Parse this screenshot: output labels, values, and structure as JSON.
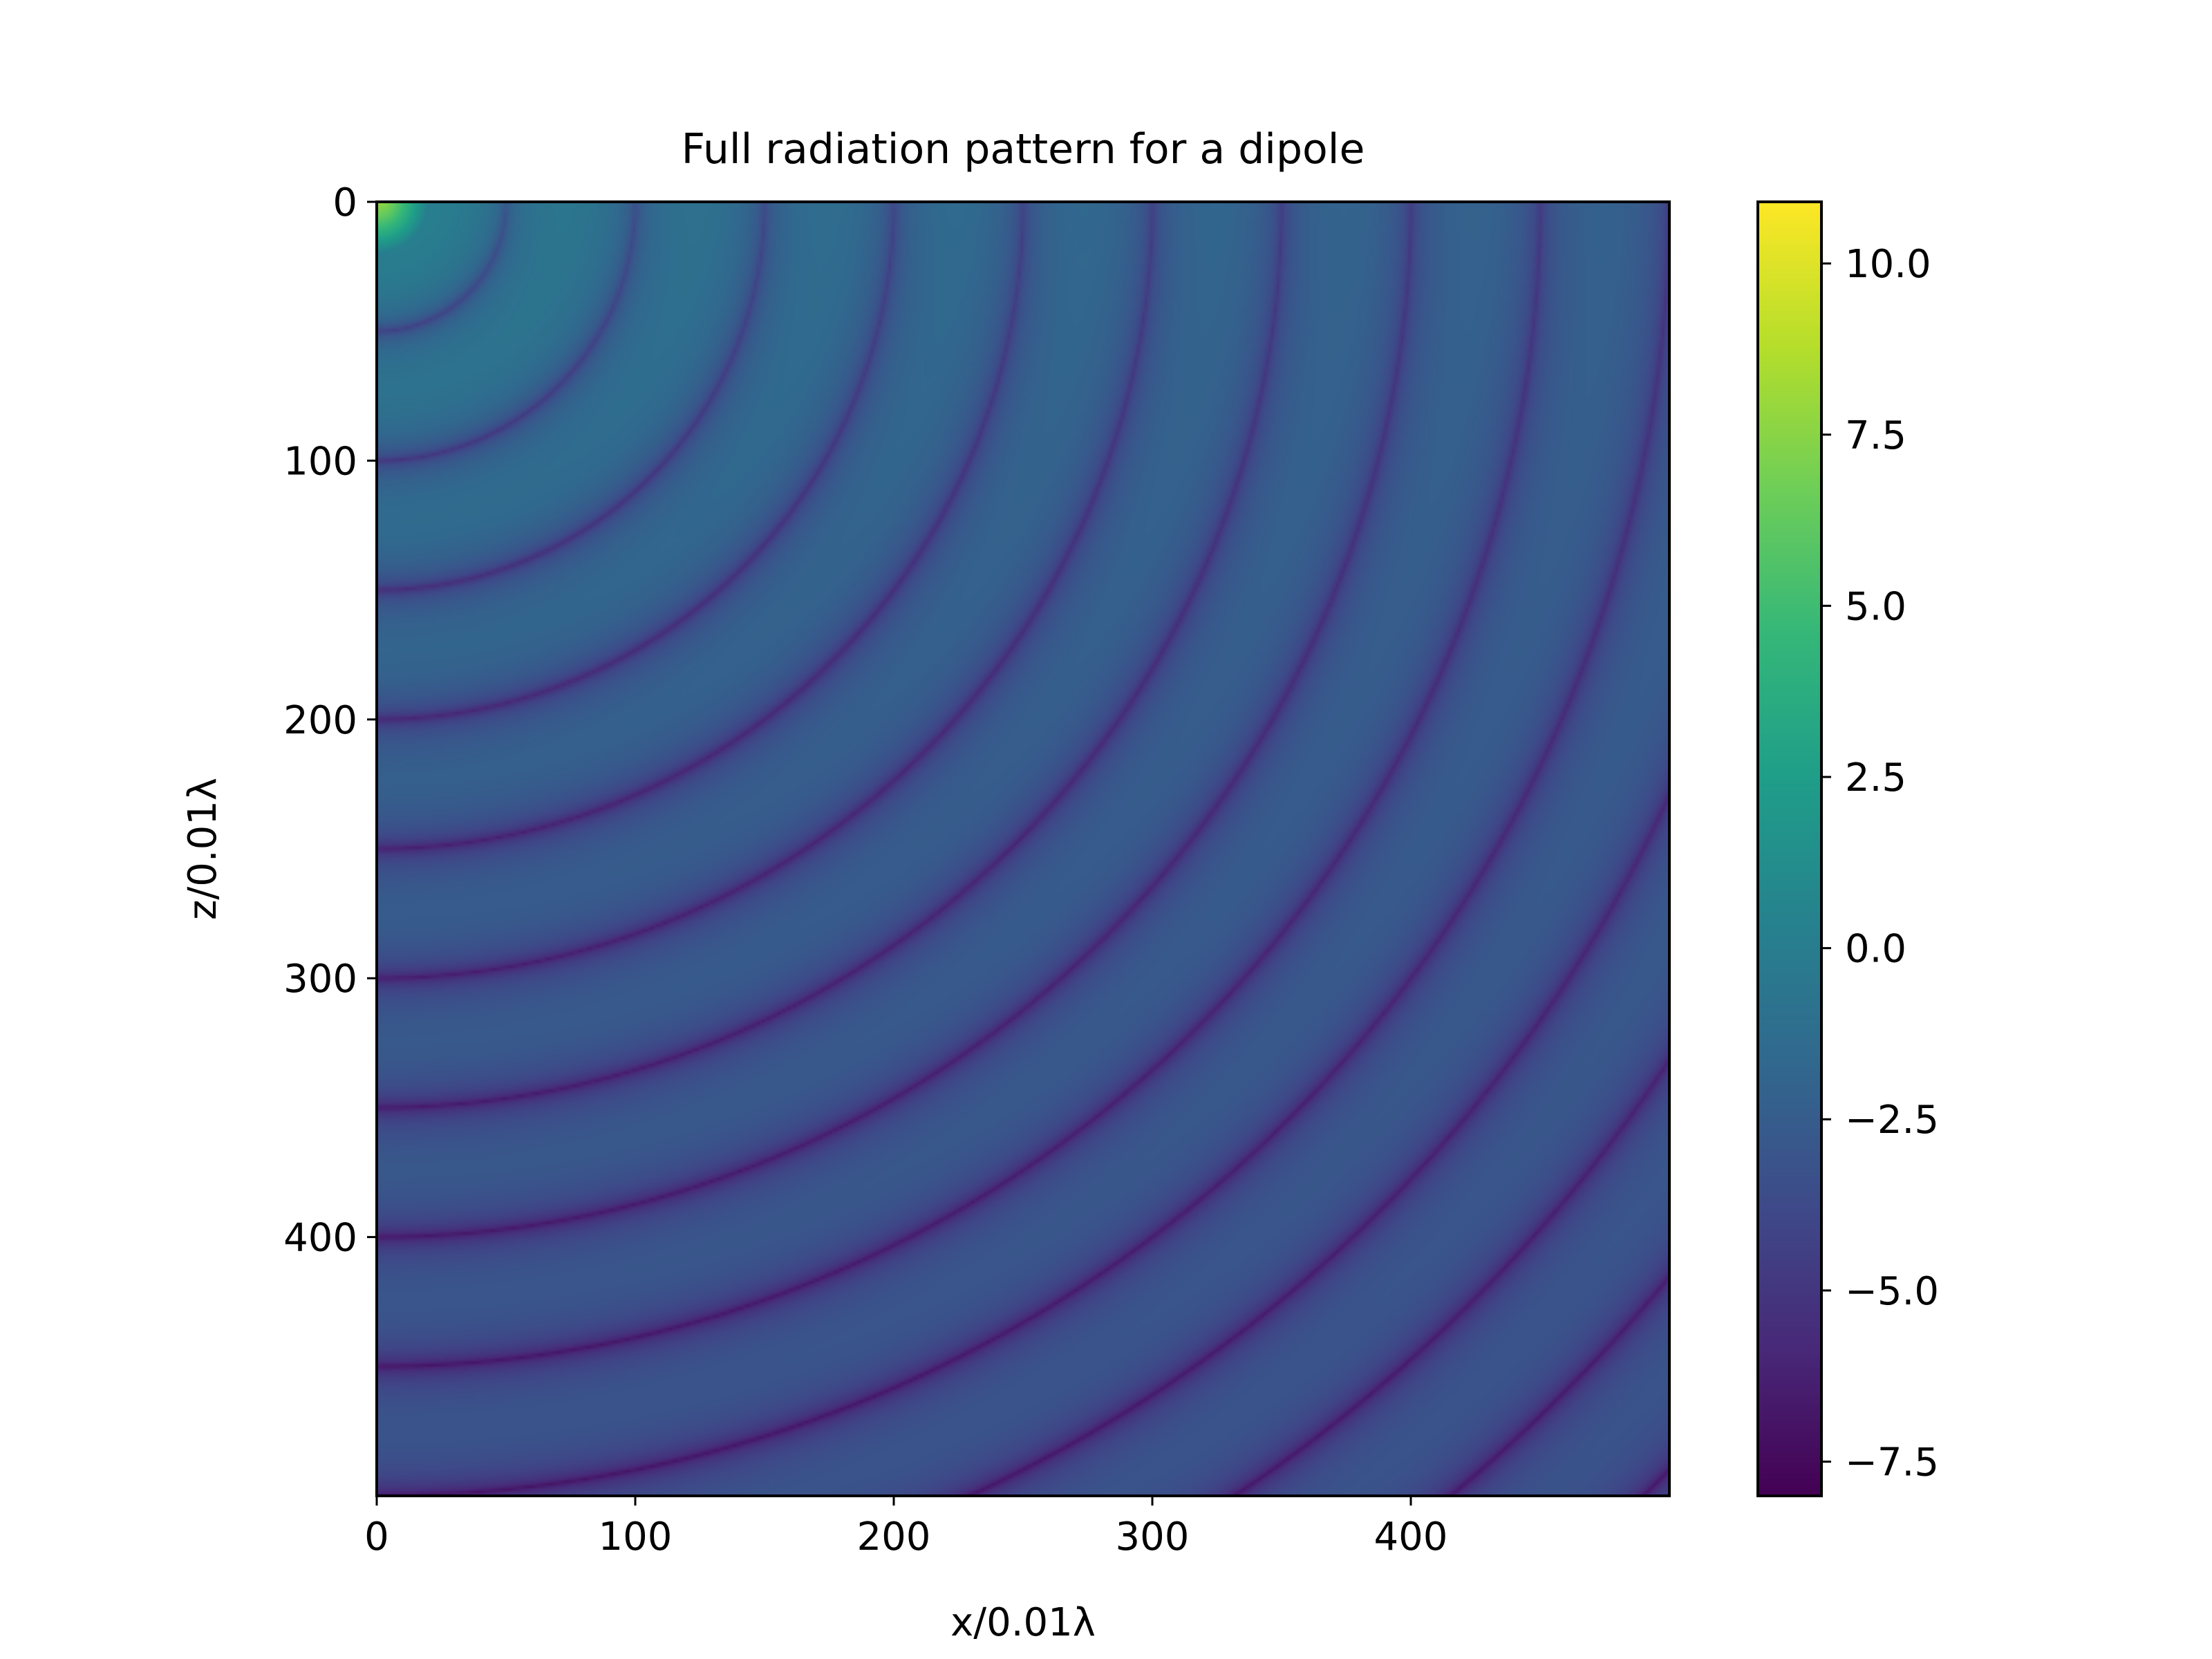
{
  "chart_data": {
    "type": "heatmap",
    "title": "Full radiation pattern for a dipole",
    "xlabel": "x/0.01λ",
    "ylabel": "z/0.01λ",
    "xlim": [
      0,
      500
    ],
    "ylim": [
      500,
      0
    ],
    "y_axis_inverted": true,
    "x_ticks": [
      0,
      100,
      200,
      300,
      400
    ],
    "x_tick_labels": [
      "0",
      "100",
      "200",
      "300",
      "400"
    ],
    "y_ticks": [
      0,
      100,
      200,
      300,
      400
    ],
    "y_tick_labels": [
      "0",
      "100",
      "200",
      "300",
      "400"
    ],
    "colormap": "viridis",
    "colorbar": {
      "vmin": -8.0,
      "vmax": 10.9,
      "ticks": [
        -7.5,
        -5.0,
        -2.5,
        0.0,
        2.5,
        5.0,
        7.5,
        10.0
      ],
      "tick_labels": [
        "−7.5",
        "−5.0",
        "−2.5",
        "0.0",
        "2.5",
        "5.0",
        "7.5",
        "10.0"
      ]
    },
    "pattern": {
      "description_values": "log-scale field magnitude; concentric dark rings (nodes) spaced every 50 units of radius from origin at top-left",
      "ring_spacing": 50,
      "value_at_origin": 10.9,
      "typical_background": -2.0,
      "min_value": -8.0
    },
    "grid": false
  }
}
